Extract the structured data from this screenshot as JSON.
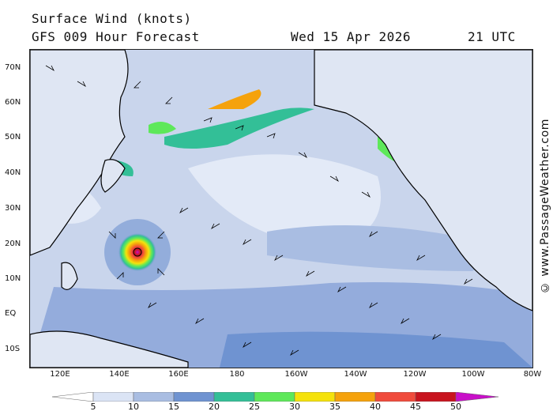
{
  "header": {
    "title": "Surface Wind (knots)",
    "model": "GFS 009 Hour Forecast",
    "date": "Wed 15 Apr 2026",
    "time": "21 UTC"
  },
  "credit": "© www.PassageWeather.com",
  "latitude_labels": [
    "70N",
    "60N",
    "50N",
    "40N",
    "30N",
    "20N",
    "10N",
    "EQ",
    "10S"
  ],
  "longitude_labels": [
    "120E",
    "140E",
    "160E",
    "180",
    "160W",
    "140W",
    "120W",
    "100W",
    "80W"
  ],
  "scale": {
    "ticks": [
      "5",
      "10",
      "15",
      "20",
      "25",
      "30",
      "35",
      "40",
      "45",
      "50"
    ],
    "colors": [
      "#ffffff",
      "#dbe4f5",
      "#a9bde2",
      "#6f93d1",
      "#33bf97",
      "#5ee85a",
      "#f5e20c",
      "#f5a20c",
      "#f04b3c",
      "#c8141e",
      "#c80fc8"
    ]
  },
  "map": {
    "ocean_wind_color": "#c9d5ec",
    "coastline_color": "#000000",
    "cyclone_center": {
      "lat": "17N",
      "lon": "145E"
    }
  }
}
